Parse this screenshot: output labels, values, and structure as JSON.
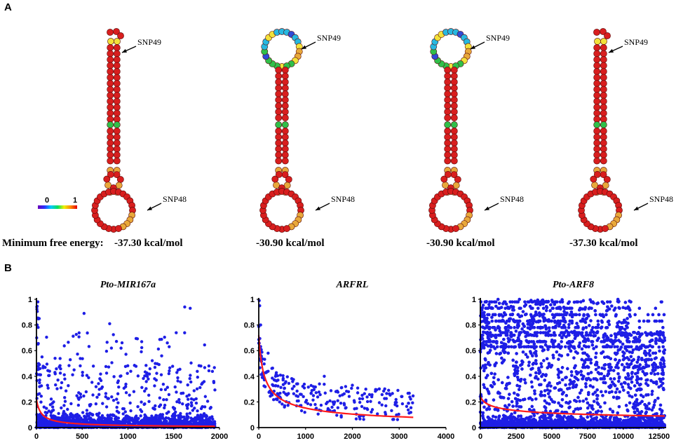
{
  "panels": {
    "a_label": "A",
    "b_label": "B"
  },
  "structures": {
    "mfe_prefix": "Minimum free energy:",
    "mfe_values": [
      "-37.30 kcal/mol",
      "-30.90 kcal/mol",
      "-30.90 kcal/mol",
      "-37.30 kcal/mol"
    ],
    "snp_top": "SNP49",
    "snp_bottom": "SNP48",
    "scale_min": "0",
    "scale_max": "1",
    "colors": {
      "paired": "#d81e1e",
      "mid": "#e8a83a",
      "yellow": "#f2e23a",
      "green": "#2fbf4a",
      "cyan": "#27b8e0",
      "blue": "#2f4bd6",
      "purple": "#6a1fb8"
    }
  },
  "chart_colors": {
    "point": "#1e1ee6",
    "fit": "#ff1a1a",
    "axis": "#000000"
  },
  "chart_data": [
    {
      "type": "scatter",
      "title": "Pto-MIR167a",
      "xlim": [
        0,
        2000
      ],
      "ylim": [
        0,
        1
      ],
      "xticks": [
        "0",
        "500",
        "1000",
        "1500",
        "2000"
      ],
      "yticks": [
        "0",
        "0.2",
        "0.4",
        "0.6",
        "0.8",
        "1"
      ],
      "n_points": 1950,
      "density": "dense near 0, sparse above 0.1",
      "fit": {
        "type": "power",
        "y_at_start": 0.22,
        "y_at_end": 0.01
      },
      "outliers": [
        [
          1620,
          0.94
        ],
        [
          1680,
          0.93
        ],
        [
          520,
          0.89
        ],
        [
          15,
          0.98
        ],
        [
          30,
          0.85
        ],
        [
          800,
          0.81
        ],
        [
          1150,
          0.67
        ],
        [
          1430,
          0.66
        ]
      ]
    },
    {
      "type": "scatter",
      "title": "ARFRL",
      "xlim": [
        0,
        4000
      ],
      "ylim": [
        0,
        1
      ],
      "xticks": [
        "0",
        "1000",
        "2000",
        "3000",
        "4000"
      ],
      "yticks": [
        "0",
        "0.2",
        "0.4",
        "0.6",
        "0.8",
        "1"
      ],
      "n_points": 260,
      "density": "decaying from 1 at 0 to ~0.1 at 3300",
      "fit": {
        "type": "power",
        "y_at_start": 0.72,
        "y_at_end": 0.08
      },
      "outliers": [
        [
          10,
          0.99
        ],
        [
          20,
          0.95
        ],
        [
          40,
          0.8
        ],
        [
          200,
          0.58
        ],
        [
          1400,
          0.4
        ],
        [
          2000,
          0.33
        ]
      ]
    },
    {
      "type": "scatter",
      "title": "Pto-ARF8",
      "xlim": [
        0,
        13000
      ],
      "ylim": [
        0,
        1
      ],
      "xticks": [
        "0",
        "2500",
        "5000",
        "7500",
        "10000",
        "12500"
      ],
      "yticks": [
        "0",
        "0.2",
        "0.4",
        "0.6",
        "0.8",
        "1"
      ],
      "n_points": 9000,
      "density": "very dense across full range with horizontal banding",
      "fit": {
        "type": "power",
        "y_at_start": 0.24,
        "y_at_end": 0.09
      },
      "outliers": []
    }
  ]
}
